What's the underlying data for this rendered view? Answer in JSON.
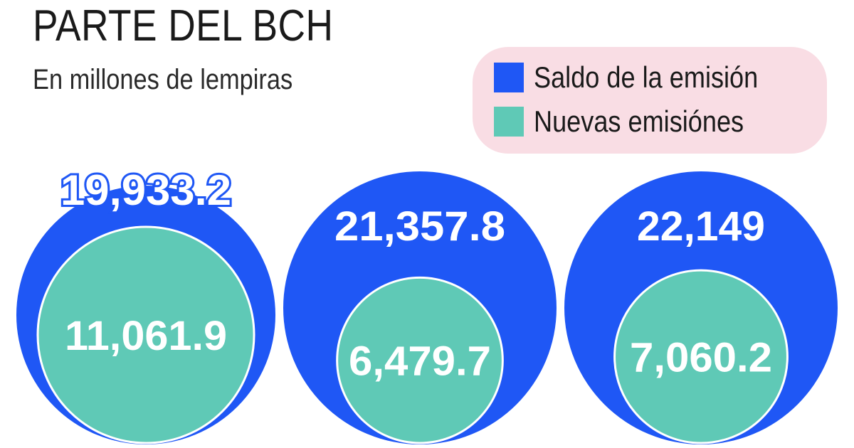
{
  "title": "PARTE DEL BCH",
  "subtitle": "En millones de lempiras",
  "colors": {
    "saldo": "#1f57f5",
    "nuevas": "#5fc9b6",
    "legend_bg": "#f9dde4",
    "text_on_circle": "#ffffff"
  },
  "chart_data": {
    "type": "bubble",
    "title": "PARTE DEL BCH",
    "subtitle": "En millones de lempiras",
    "legend": [
      {
        "name": "Saldo de la emisión",
        "color": "#1f57f5"
      },
      {
        "name": "Nuevas emisiónes",
        "color": "#5fc9b6"
      }
    ],
    "legend_position": "top-right",
    "series": [
      {
        "name": "Saldo de la emisión",
        "values": [
          19933.2,
          21357.8,
          22149
        ],
        "labels": [
          "19,933.2",
          "21,357.8",
          "22,149"
        ]
      },
      {
        "name": "Nuevas emisiónes",
        "values": [
          11061.9,
          6479.7,
          7060.2
        ],
        "labels": [
          "11,061.9",
          "6,479.7",
          "7,060.2"
        ]
      }
    ]
  }
}
